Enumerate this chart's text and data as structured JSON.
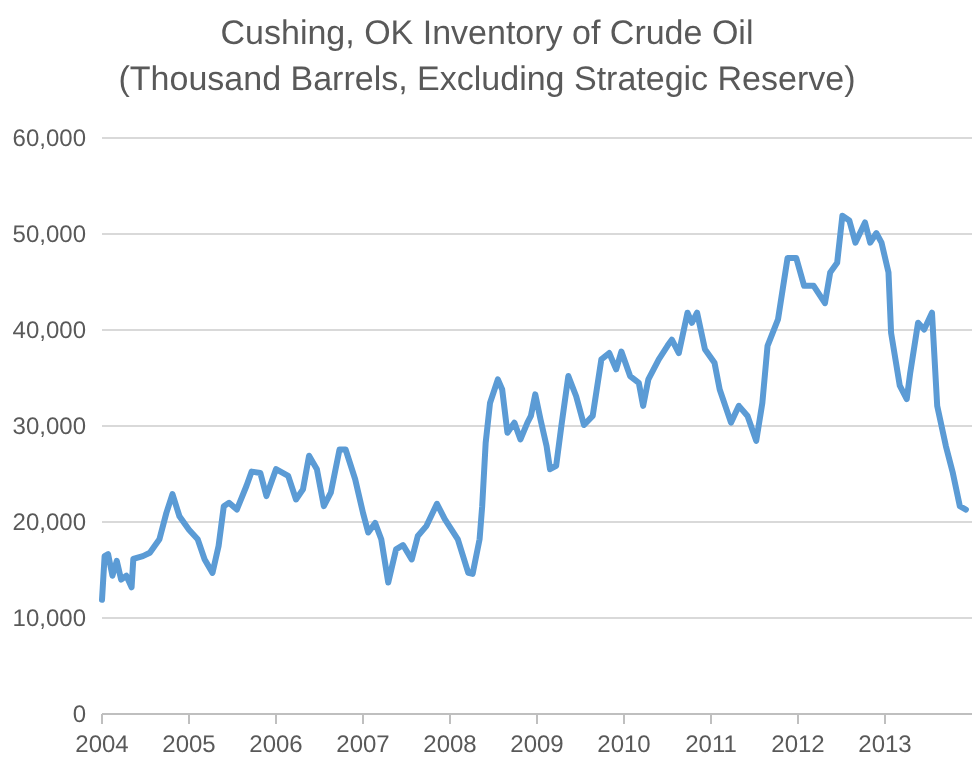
{
  "chart_data": {
    "type": "line",
    "title": "Cushing, OK Inventory of Crude Oil",
    "subtitle": "(Thousand Barrels, Excluding Strategic Reserve)",
    "xlim": [
      2004,
      2014
    ],
    "xticks": [
      2004,
      2005,
      2006,
      2007,
      2008,
      2009,
      2010,
      2011,
      2012,
      2013
    ],
    "ylim": [
      0,
      60000
    ],
    "yticks": [
      0,
      {
        "value": 10000,
        "label": "10,000"
      },
      {
        "value": 20000,
        "label": "20,000"
      },
      {
        "value": 30000,
        "label": "30,000"
      },
      {
        "value": 40000,
        "label": "40,000"
      },
      {
        "value": 50000,
        "label": "50,000"
      },
      {
        "value": 60000,
        "label": "60,000"
      }
    ],
    "grid": "y",
    "series": [
      {
        "color": "#5b9bd5",
        "x": [
          2004.0,
          2004.03,
          2004.07,
          2004.12,
          2004.17,
          2004.22,
          2004.28,
          2004.34,
          2004.36,
          2004.47,
          2004.55,
          2004.66,
          2004.74,
          2004.81,
          2004.89,
          2005.0,
          2005.1,
          2005.18,
          2005.27,
          2005.34,
          2005.4,
          2005.46,
          2005.55,
          2005.66,
          2005.72,
          2005.82,
          2005.89,
          2006.0,
          2006.14,
          2006.23,
          2006.31,
          2006.38,
          2006.47,
          2006.55,
          2006.63,
          2006.73,
          2006.8,
          2006.91,
          2007.0,
          2007.06,
          2007.14,
          2007.21,
          2007.29,
          2007.38,
          2007.46,
          2007.56,
          2007.63,
          2007.73,
          2007.85,
          2007.94,
          2008.09,
          2008.21,
          2008.26,
          2008.34,
          2008.37,
          2008.41,
          2008.46,
          2008.55,
          2008.6,
          2008.66,
          2008.74,
          2008.81,
          2008.89,
          2008.93,
          2008.98,
          2009.04,
          2009.11,
          2009.15,
          2009.22,
          2009.28,
          2009.36,
          2009.45,
          2009.54,
          2009.64,
          2009.74,
          2009.83,
          2009.91,
          2009.97,
          2010.07,
          2010.17,
          2010.22,
          2010.28,
          2010.4,
          2010.5,
          2010.55,
          2010.63,
          2010.73,
          2010.78,
          2010.84,
          2010.93,
          2011.04,
          2011.1,
          2011.23,
          2011.32,
          2011.42,
          2011.52,
          2011.59,
          2011.65,
          2011.77,
          2011.88,
          2011.98,
          2012.07,
          2012.18,
          2012.31,
          2012.37,
          2012.45,
          2012.51,
          2012.59,
          2012.66,
          2012.77,
          2012.83,
          2012.9,
          2012.96,
          2013.04,
          2013.07,
          2013.17,
          2013.25,
          2013.29,
          2013.38,
          2013.45,
          2013.54,
          2013.6,
          2013.7,
          2013.78,
          2013.86,
          2013.93
        ],
        "values": [
          11900,
          16450,
          16650,
          14400,
          15950,
          14000,
          14400,
          13200,
          16150,
          16450,
          16800,
          18200,
          20950,
          22900,
          20600,
          19200,
          18200,
          16100,
          14700,
          17500,
          21650,
          22000,
          21300,
          23750,
          25250,
          25100,
          22700,
          25500,
          24800,
          22350,
          23400,
          26900,
          25500,
          21650,
          23050,
          27550,
          27550,
          24450,
          20950,
          18900,
          19900,
          18200,
          13700,
          17150,
          17600,
          16100,
          18550,
          19600,
          21900,
          20300,
          18200,
          14700,
          14600,
          18200,
          21650,
          28250,
          32400,
          34850,
          33800,
          29300,
          30350,
          28600,
          30350,
          31050,
          33300,
          30700,
          27900,
          25500,
          25850,
          30000,
          35200,
          33100,
          30100,
          31050,
          36950,
          37600,
          35900,
          37750,
          35200,
          34500,
          32100,
          34850,
          36950,
          38350,
          39000,
          37600,
          41800,
          40750,
          41800,
          38000,
          36600,
          33800,
          30350,
          32100,
          31050,
          28450,
          32400,
          38350,
          41100,
          47500,
          47500,
          44600,
          44600,
          42800,
          46000,
          47000,
          51900,
          51400,
          49100,
          51200,
          49100,
          50100,
          49100,
          46000,
          39700,
          34200,
          32800,
          35550,
          40750,
          40050,
          41800,
          32100,
          27900,
          25100,
          21650,
          21300
        ]
      }
    ]
  }
}
